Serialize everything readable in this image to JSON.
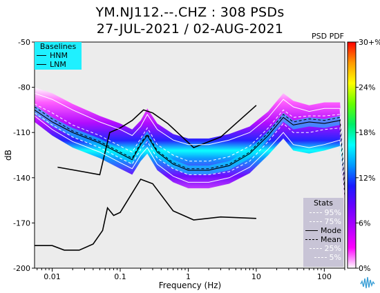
{
  "chart_data": {
    "type": "heatmap",
    "title": "YM.NJ112.--.CHZ : 308 PSDs",
    "subtitle": "27-JUL-2021 / 02-AUG-2021",
    "xlabel": "Frequency (Hz)",
    "ylabel": "dB",
    "x_scale": "log",
    "xlim": [
      0.0055,
      200
    ],
    "ylim": [
      -200,
      -50
    ],
    "x_ticks": [
      0.01,
      0.1,
      1,
      10,
      100
    ],
    "x_tick_labels": [
      "0.01",
      "0.1",
      "1",
      "10",
      "100"
    ],
    "y_ticks": [
      -50,
      -80,
      -110,
      -140,
      -170,
      -200
    ],
    "y_tick_labels": [
      "-50",
      "-80",
      "-110",
      "-140",
      "-170",
      "-200"
    ],
    "colorbar": {
      "label": "PSD PDF",
      "ticks": [
        "30+%",
        "24%",
        "18%",
        "12%",
        "6%",
        "0%"
      ],
      "colors": [
        "#ff0000",
        "#ff9900",
        "#ffff00",
        "#66ff00",
        "#00ee66",
        "#00ffff",
        "#0099ff",
        "#1a1aff",
        "#6a00ff",
        "#b000ff",
        "#ff00ff",
        "#ffffff"
      ]
    },
    "baselines_legend": {
      "title": "Baselines",
      "entries": [
        "HNM",
        "LNM"
      ]
    },
    "stats_legend": {
      "title": "Stats",
      "entries": [
        "95%",
        "75%",
        "Mode",
        "Mean",
        "25%",
        "5%"
      ]
    },
    "series": [
      {
        "name": "HNM",
        "x": [
          0.012,
          0.05,
          0.07,
          0.1,
          0.15,
          0.22,
          0.3,
          0.5,
          1.2,
          3,
          10
        ],
        "y": [
          -133,
          -138,
          -110,
          -107,
          -102,
          -95,
          -97,
          -104,
          -120,
          -113,
          -92
        ]
      },
      {
        "name": "LNM",
        "x": [
          0.0055,
          0.01,
          0.015,
          0.025,
          0.04,
          0.055,
          0.065,
          0.08,
          0.1,
          0.2,
          0.3,
          0.6,
          1.2,
          3,
          10
        ],
        "y": [
          -185,
          -185,
          -188,
          -188,
          -184,
          -175,
          -160,
          -165,
          -163,
          -141,
          -144,
          -162,
          -168,
          -166,
          -167
        ]
      },
      {
        "name": "Mode",
        "x": [
          0.0055,
          0.01,
          0.02,
          0.05,
          0.1,
          0.15,
          0.2,
          0.25,
          0.35,
          0.6,
          1,
          2,
          4,
          8,
          15,
          25,
          35,
          60,
          100,
          170,
          200
        ],
        "y": [
          -95,
          -103,
          -110,
          -117,
          -124,
          -128,
          -118,
          -112,
          -123,
          -131,
          -135,
          -135,
          -132,
          -124,
          -112,
          -100,
          -105,
          -103,
          -104,
          -102,
          -152
        ]
      },
      {
        "name": "Mean",
        "x": [
          0.0055,
          0.01,
          0.02,
          0.05,
          0.1,
          0.15,
          0.2,
          0.25,
          0.35,
          0.6,
          1,
          2,
          4,
          8,
          15,
          25,
          35,
          60,
          100,
          170,
          200
        ],
        "y": [
          -93,
          -101,
          -109,
          -116,
          -123,
          -127,
          -117,
          -111,
          -122,
          -130,
          -134,
          -134,
          -131,
          -123,
          -110,
          -98,
          -103,
          -101,
          -102,
          -100,
          -150
        ]
      },
      {
        "name": "95%",
        "x": [
          0.0055,
          0.01,
          0.02,
          0.05,
          0.1,
          0.15,
          0.2,
          0.25,
          0.35,
          0.6,
          1,
          2,
          4,
          8,
          15,
          25,
          35,
          60,
          100,
          170,
          200
        ],
        "y": [
          -84,
          -88,
          -95,
          -103,
          -108,
          -112,
          -106,
          -98,
          -108,
          -115,
          -118,
          -118,
          -115,
          -110,
          -100,
          -88,
          -93,
          -96,
          -94,
          -94,
          -138
        ]
      },
      {
        "name": "75%",
        "x": [
          0.0055,
          0.01,
          0.02,
          0.05,
          0.1,
          0.15,
          0.2,
          0.25,
          0.35,
          0.6,
          1,
          2,
          4,
          8,
          15,
          25,
          35,
          60,
          100,
          170,
          200
        ],
        "y": [
          -91,
          -97,
          -105,
          -112,
          -119,
          -123,
          -114,
          -107,
          -118,
          -125,
          -129,
          -129,
          -126,
          -119,
          -107,
          -95,
          -100,
          -99,
          -99,
          -98,
          -146
        ]
      },
      {
        "name": "25%",
        "x": [
          0.0055,
          0.01,
          0.02,
          0.05,
          0.1,
          0.15,
          0.2,
          0.25,
          0.35,
          0.6,
          1,
          2,
          4,
          8,
          15,
          25,
          35,
          60,
          100,
          170,
          200
        ],
        "y": [
          -97,
          -105,
          -113,
          -120,
          -127,
          -131,
          -121,
          -116,
          -127,
          -134,
          -138,
          -138,
          -136,
          -129,
          -116,
          -104,
          -110,
          -110,
          -108,
          -107,
          -155
        ]
      },
      {
        "name": "5%",
        "x": [
          0.0055,
          0.01,
          0.02,
          0.05,
          0.1,
          0.15,
          0.2,
          0.25,
          0.35,
          0.6,
          1,
          2,
          4,
          8,
          15,
          25,
          35,
          60,
          100,
          170,
          200
        ],
        "y": [
          -99,
          -108,
          -116,
          -123,
          -130,
          -134,
          -125,
          -120,
          -131,
          -139,
          -143,
          -143,
          -140,
          -133,
          -121,
          -110,
          -118,
          -120,
          -118,
          -115,
          -160
        ]
      }
    ]
  }
}
